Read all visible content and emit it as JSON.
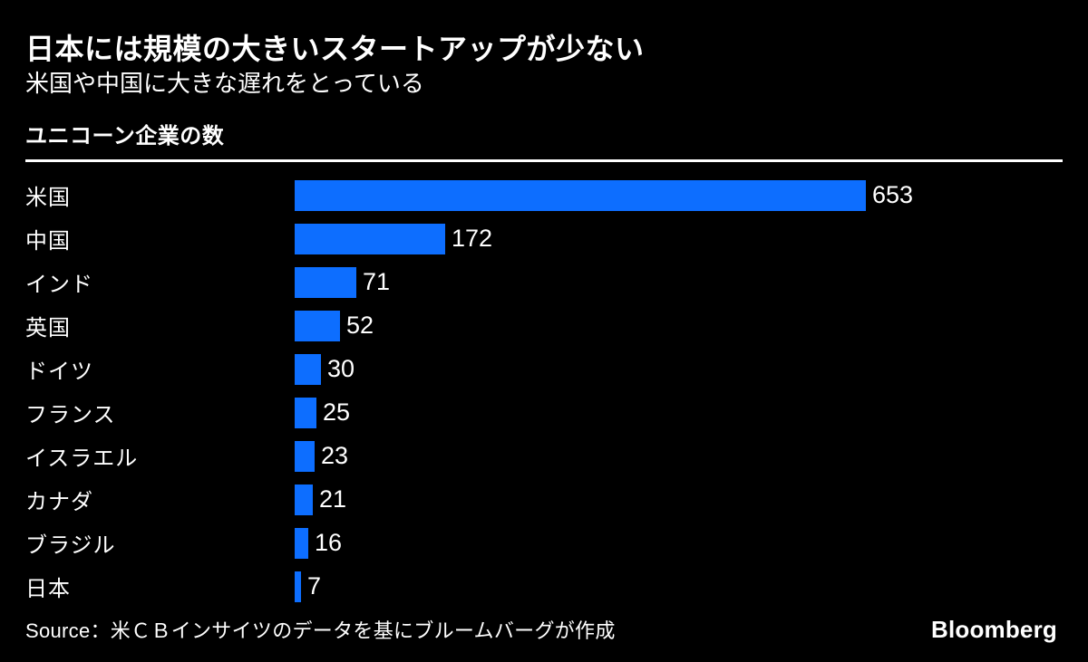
{
  "header": {
    "title": "日本には規模の大きいスタートアップが少ない",
    "subtitle": "米国や中国に大きな遅れをとっている"
  },
  "chart_data": {
    "type": "bar",
    "orientation": "horizontal",
    "title": "ユニコーン企業の数",
    "categories": [
      "米国",
      "中国",
      "インド",
      "英国",
      "ドイツ",
      "フランス",
      "イスラエル",
      "カナダ",
      "ブラジル",
      "日本"
    ],
    "values": [
      653,
      172,
      71,
      52,
      30,
      25,
      23,
      21,
      16,
      7
    ],
    "xlim": [
      0,
      653
    ],
    "value_labels": true,
    "grid": false,
    "legend": false,
    "bar_color": "#0d6eff"
  },
  "footer": {
    "source": "Source：米ＣＢインサイツのデータを基にブルームバーグが作成",
    "logo": "Bloomberg"
  },
  "colors": {
    "background": "#000000",
    "text": "#ffffff",
    "bar": "#0d6eff",
    "rule": "#ffffff"
  }
}
